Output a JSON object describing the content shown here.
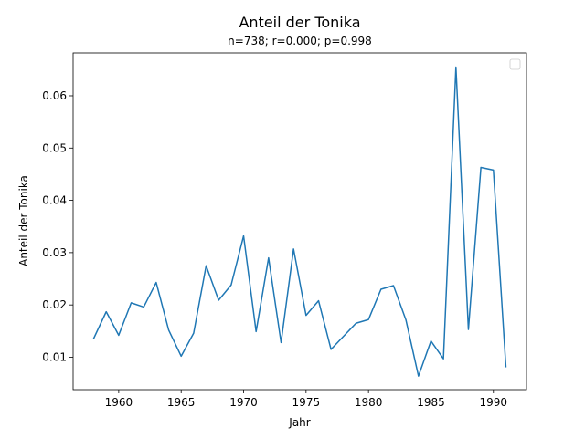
{
  "chart_data": {
    "type": "line",
    "title": "Anteil der Tonika",
    "subtitle": "n=738; r=0.000; p=0.998",
    "xlabel": "Jahr",
    "ylabel": "Anteil der Tonika",
    "xlim": [
      1956.35,
      1992.65
    ],
    "ylim": [
      0.0038,
      0.0682
    ],
    "xticks": [
      1960,
      1965,
      1970,
      1975,
      1980,
      1985,
      1990
    ],
    "yticks": [
      0.01,
      0.02,
      0.03,
      0.04,
      0.05,
      0.06
    ],
    "xtick_labels": [
      "1960",
      "1965",
      "1970",
      "1975",
      "1980",
      "1985",
      "1990"
    ],
    "ytick_labels": [
      "0.01",
      "0.02",
      "0.03",
      "0.04",
      "0.05",
      "0.06"
    ],
    "grid": false,
    "legend": "top-right (empty)",
    "color": "#1f77b4",
    "series": [
      {
        "x": [
          1958,
          1959,
          1960,
          1961,
          1962,
          1963,
          1964,
          1965,
          1966,
          1967,
          1968,
          1969,
          1970,
          1971,
          1972,
          1973,
          1974,
          1975,
          1976,
          1977,
          1979,
          1980,
          1981,
          1982,
          1983,
          1984,
          1985,
          1986,
          1987,
          1988,
          1989,
          1990,
          1991
        ],
        "values": [
          0.0136,
          0.0187,
          0.0142,
          0.0204,
          0.0196,
          0.0243,
          0.0152,
          0.0102,
          0.0146,
          0.0275,
          0.0209,
          0.0238,
          0.0332,
          0.0149,
          0.029,
          0.0128,
          0.0307,
          0.018,
          0.0208,
          0.0115,
          0.0165,
          0.0172,
          0.023,
          0.0237,
          0.0171,
          0.0064,
          0.0131,
          0.0097,
          0.0655,
          0.0153,
          0.0463,
          0.0458,
          0.0082
        ]
      }
    ]
  }
}
